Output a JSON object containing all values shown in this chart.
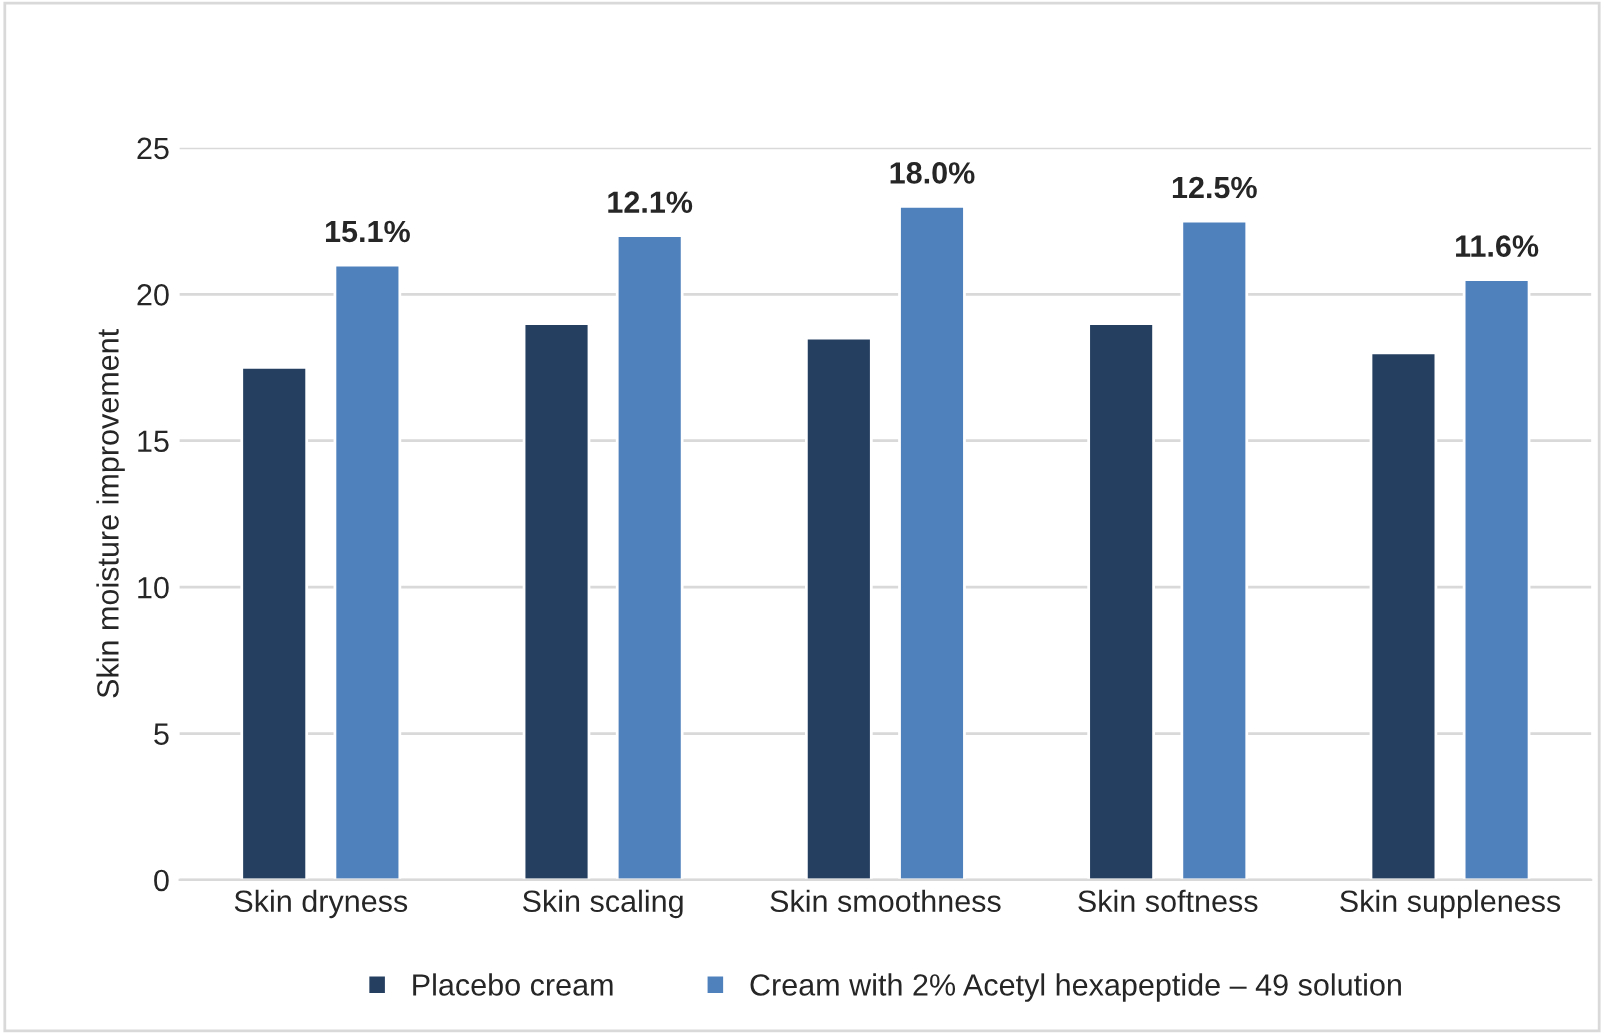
{
  "chart_data": {
    "type": "bar",
    "ylabel": "Skin moisture improvement",
    "categories": [
      "Skin dryness",
      "Skin scaling",
      "Skin smoothness",
      "Skin softness",
      "Skin suppleness"
    ],
    "series": [
      {
        "name": "Placebo cream",
        "color": "#243f60",
        "values": [
          17.5,
          19.0,
          18.5,
          19.0,
          18.0
        ]
      },
      {
        "name": "Cream with 2% Acetyl hexapeptide – 49 solution",
        "color": "#4f81bd",
        "values": [
          21.0,
          22.0,
          23.0,
          22.5,
          20.5
        ]
      }
    ],
    "annotations": [
      "15.1%",
      "12.1%",
      "18.0%",
      "12.5%",
      "11.6%"
    ],
    "ylim": [
      0,
      25
    ],
    "yticks": [
      0,
      5,
      10,
      15,
      20,
      25
    ],
    "grid": "y",
    "legend": "bottom"
  }
}
